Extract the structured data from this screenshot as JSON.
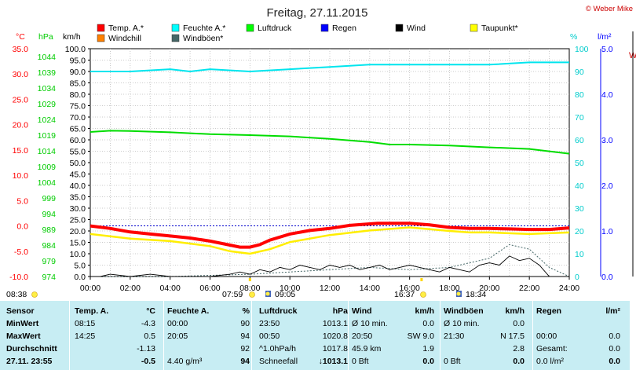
{
  "title": "Freitag, 27.11.2015",
  "credit": "© Weber Mike",
  "right_cut_label": "W",
  "legend": [
    {
      "label": "Temp. A.*",
      "color": "#ff0000"
    },
    {
      "label": "Feuchte A.*",
      "color": "#00ffff"
    },
    {
      "label": "Luftdruck",
      "color": "#00ff00"
    },
    {
      "label": "Regen",
      "color": "#0000ff"
    },
    {
      "label": "Wind",
      "color": "#000000"
    },
    {
      "label": "Taupunkt*",
      "color": "#ffff00"
    },
    {
      "label": "Windchill",
      "color": "#ff8000"
    },
    {
      "label": "Windböen*",
      "color": "#446666"
    }
  ],
  "axes": {
    "temp_unit": "°C",
    "hpa_unit": "hPa",
    "kmh_unit": "km/h",
    "pct_unit": "%",
    "lm2_unit": "l/m²",
    "temp_ticks": [
      "35.0",
      "30.0",
      "25.0",
      "20.0",
      "15.0",
      "10.0",
      "5.0",
      "0.0",
      "-5.0",
      "-10.0"
    ],
    "hpa_ticks": [
      "1044",
      "1039",
      "1034",
      "1029",
      "1024",
      "1019",
      "1014",
      "1009",
      "1004",
      "999",
      "994",
      "989",
      "984",
      "979",
      "974"
    ],
    "kmh_ticks": [
      "100.0",
      "95.0",
      "90.0",
      "85.0",
      "80.0",
      "75.0",
      "70.0",
      "65.0",
      "60.0",
      "55.0",
      "50.0",
      "45.0",
      "40.0",
      "35.0",
      "30.0",
      "25.0",
      "20.0",
      "15.0",
      "10.0",
      "5.0",
      "0.0"
    ],
    "pct_ticks": [
      "100",
      "90",
      "80",
      "70",
      "60",
      "50",
      "40",
      "30",
      "20",
      "10",
      "0"
    ],
    "lm2_ticks": [
      "5.0",
      "4.0",
      "3.0",
      "2.0",
      "1.0",
      "0.0"
    ],
    "x_ticks": [
      "00:00",
      "02:00",
      "04:00",
      "06:00",
      "08:00",
      "10:00",
      "12:00",
      "14:00",
      "16:00",
      "18:00",
      "20:00",
      "22:00",
      "24:00"
    ]
  },
  "sun_events": [
    {
      "label": "08:38",
      "kind": "sun"
    },
    {
      "label": "07:59",
      "kind": "sun"
    },
    {
      "label": "09:05",
      "kind": "moon"
    },
    {
      "label": "16:37",
      "kind": "sun"
    },
    {
      "label": "18:34",
      "kind": "moon"
    }
  ],
  "chart_data": {
    "type": "line",
    "x_unit": "hours",
    "xlim": [
      0,
      24
    ],
    "series": [
      {
        "name": "Temp. A.*",
        "unit": "°C",
        "color": "#ff0000",
        "x": [
          0,
          1,
          2,
          3,
          4,
          5,
          6,
          7,
          7.5,
          8,
          8.5,
          9,
          10,
          11,
          12,
          13,
          14,
          14.4,
          15,
          16,
          17,
          18,
          19,
          20,
          21,
          22,
          23,
          24
        ],
        "y": [
          0.0,
          -0.5,
          -1.2,
          -1.6,
          -2.0,
          -2.4,
          -3.0,
          -3.8,
          -4.2,
          -4.2,
          -3.7,
          -2.8,
          -1.6,
          -0.9,
          -0.5,
          0.1,
          0.4,
          0.5,
          0.5,
          0.5,
          0.2,
          -0.3,
          -0.5,
          -0.5,
          -0.6,
          -0.7,
          -0.7,
          -0.4
        ]
      },
      {
        "name": "Feuchte A.*",
        "unit": "%",
        "color": "#00ffff",
        "x": [
          0,
          2,
          4,
          5,
          6,
          8,
          10,
          12,
          14,
          16,
          18,
          20,
          22,
          24
        ],
        "y": [
          90,
          90,
          91,
          90,
          91,
          90,
          91,
          92,
          93,
          93,
          93,
          93,
          94,
          94
        ]
      },
      {
        "name": "Luftdruck",
        "unit": "hPa",
        "color": "#00ff00",
        "x": [
          0,
          1,
          2,
          4,
          6,
          8,
          10,
          12,
          14,
          15,
          16,
          18,
          20,
          22,
          24
        ],
        "y": [
          1020.0,
          1020.4,
          1020.3,
          1019.9,
          1019.3,
          1019.0,
          1018.6,
          1017.8,
          1016.8,
          1016.0,
          1016.0,
          1015.7,
          1015.1,
          1014.6,
          1013.1
        ]
      },
      {
        "name": "Taupunkt*",
        "unit": "°C",
        "color": "#ffff00",
        "x": [
          0,
          2,
          4,
          6,
          7,
          8,
          9,
          10,
          12,
          14,
          16,
          18,
          19,
          20,
          22,
          24
        ],
        "y": [
          -1.6,
          -2.5,
          -3.0,
          -4.0,
          -5.0,
          -5.5,
          -4.6,
          -3.2,
          -1.8,
          -0.9,
          -0.3,
          -1.0,
          -1.3,
          -1.3,
          -1.6,
          -1.3
        ]
      },
      {
        "name": "Wind",
        "unit": "km/h",
        "color": "#000000",
        "x": [
          0,
          0.5,
          1,
          2,
          3,
          4,
          5,
          6,
          7,
          7.5,
          8,
          8.5,
          9,
          9.5,
          10,
          10.5,
          11,
          11.5,
          12,
          12.5,
          13,
          13.5,
          14,
          14.5,
          15,
          15.5,
          16,
          16.5,
          17,
          17.5,
          18,
          18.5,
          19,
          19.5,
          20,
          20.5,
          21,
          21.5,
          22,
          22.5,
          23,
          23.5,
          24
        ],
        "y": [
          0,
          0,
          1,
          0,
          1,
          0,
          0,
          0,
          1,
          2,
          1,
          3,
          2,
          4,
          3,
          5,
          4,
          3,
          5,
          4,
          5,
          3,
          4,
          5,
          3,
          4,
          5,
          4,
          3,
          2,
          4,
          3,
          2,
          5,
          6,
          5,
          9,
          7,
          8,
          5,
          0,
          0,
          0
        ]
      },
      {
        "name": "Windböen*",
        "unit": "km/h",
        "color": "#446666",
        "x": [
          0,
          4,
          8,
          10,
          12,
          14,
          16,
          18,
          19,
          20,
          21,
          22,
          23,
          24
        ],
        "y": [
          0,
          0,
          1,
          2,
          3,
          4,
          3,
          4,
          6,
          8,
          14,
          12,
          4,
          0
        ]
      }
    ]
  },
  "table": {
    "headers": [
      "Sensor",
      "Temp. A.",
      "°C",
      "Feuchte A.",
      "%",
      "Luftdruck",
      "hPa",
      "Wind",
      "km/h",
      "Windböen",
      "km/h",
      "Regen",
      "l/m²"
    ],
    "rows": [
      {
        "label": "MinWert",
        "c": [
          "08:15",
          "-4.3",
          "00:00",
          "90",
          "23:50",
          "1013.1",
          "Ø 10 min.",
          "0.0",
          "Ø 10 min.",
          "0.0",
          "",
          ""
        ]
      },
      {
        "label": "MaxWert",
        "c": [
          "14:25",
          "0.5",
          "20:05",
          "94",
          "00:50",
          "1020.8",
          "20:50",
          "SW 9.0",
          "21:30",
          "N 17.5",
          "00:00",
          "0.0"
        ]
      },
      {
        "label": "Durchschnitt",
        "c": [
          "",
          "-1.13",
          "",
          "92",
          "^1.0hPa/h",
          "1017.8",
          "45.9 km",
          "1.9",
          "",
          "2.8",
          "Gesamt:",
          "0.0"
        ]
      },
      {
        "label": "27.11. 23:55",
        "c": [
          "",
          "-0.5",
          "4.40 g/m³",
          "94",
          "Schneefall",
          "↓1013.1",
          "0 Bft",
          "0.0",
          "0 Bft",
          "0.0",
          "0.0 l/m²",
          "0.0"
        ]
      }
    ]
  }
}
